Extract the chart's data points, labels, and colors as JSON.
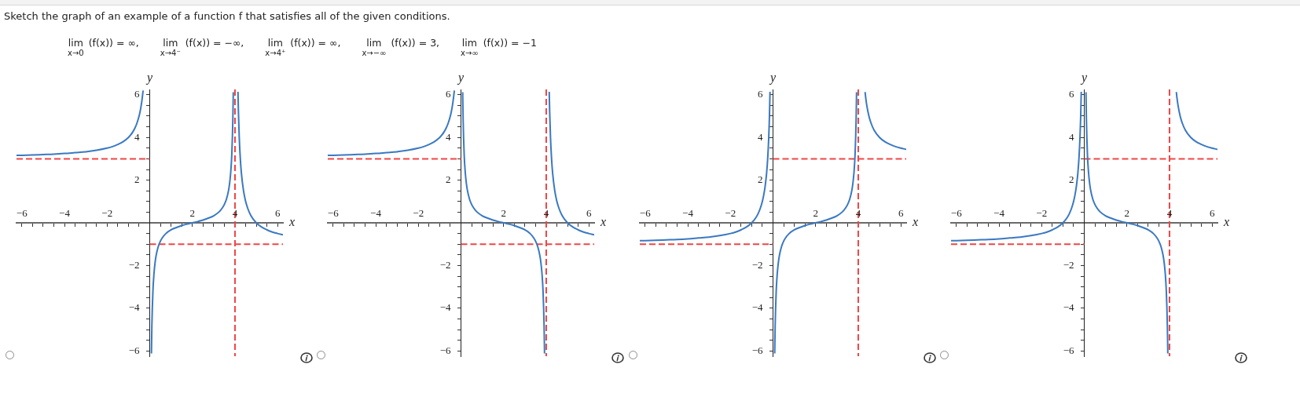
{
  "chart_data": [
    {
      "type": "other",
      "title": "Sketch the graph of an example of a function f that satisfies all of the given conditions.",
      "annotations": [
        "lim$_{x→0}$ (f(x)) = ∞,",
        "lim$_{x→4⁻}$ (f(x)) = −∞,",
        "lim$_{x→4⁺}$ (f(x)) = ∞,",
        "lim$_{x→−∞}$ (f(x)) = 3,",
        "lim$_{x→∞}$ (f(x)) = −1"
      ]
    },
    {
      "type": "line",
      "xlabel": "x",
      "ylabel": "y",
      "xlim": [
        -6.25,
        6.25
      ],
      "ylim": [
        -6.25,
        6.25
      ],
      "xticks": [
        {
          "value": -6,
          "label": "−6"
        },
        {
          "value": -5.5,
          "label": null
        },
        {
          "value": -5,
          "label": null
        },
        {
          "value": -4.5,
          "label": null
        },
        {
          "value": -4,
          "label": "−4"
        },
        {
          "value": -3.5,
          "label": null
        },
        {
          "value": -3,
          "label": null
        },
        {
          "value": -2.5,
          "label": null
        },
        {
          "value": -2,
          "label": "−2"
        },
        {
          "value": -1.5,
          "label": null
        },
        {
          "value": -1,
          "label": null
        },
        {
          "value": -0.5,
          "label": null
        },
        {
          "value": 0.5,
          "label": null
        },
        {
          "value": 1,
          "label": null
        },
        {
          "value": 1.5,
          "label": null
        },
        2,
        {
          "value": 2.5,
          "label": null
        },
        {
          "value": 3,
          "label": null
        },
        {
          "value": 3.5,
          "label": null
        },
        4,
        {
          "value": 4.5,
          "label": null
        },
        {
          "value": 5,
          "label": null
        },
        {
          "value": 5.5,
          "label": null
        },
        6
      ],
      "yticks": [
        {
          "value": -6,
          "label": "−6"
        },
        {
          "value": -5.5,
          "label": null
        },
        {
          "value": -5,
          "label": null
        },
        {
          "value": -4.5,
          "label": null
        },
        {
          "value": -4,
          "label": "−4"
        },
        {
          "value": -3.5,
          "label": null
        },
        {
          "value": -3,
          "label": null
        },
        {
          "value": -2.5,
          "label": null
        },
        {
          "value": -2,
          "label": "−2"
        },
        {
          "value": -1.5,
          "label": null
        },
        {
          "value": -1,
          "label": null
        },
        {
          "value": -0.5,
          "label": null
        },
        {
          "value": 0.5,
          "label": null
        },
        {
          "value": 1,
          "label": null
        },
        {
          "value": 1.5,
          "label": null
        },
        2,
        {
          "value": 2.5,
          "label": null
        },
        {
          "value": 3,
          "label": null
        },
        {
          "value": 3.5,
          "label": null
        },
        4,
        {
          "value": 4.5,
          "label": null
        },
        {
          "value": 5,
          "label": null
        },
        {
          "value": 5.5,
          "label": null
        },
        6
      ],
      "marker": "none",
      "series": [
        {
          "color": "#3a79c1",
          "x": [
            -6.25,
            -5.5,
            -5,
            -4.5,
            -4,
            -3.5,
            -3,
            -2.5,
            -2,
            -1.75,
            -1.5,
            -1.25,
            -1,
            -0.9,
            -0.8,
            -0.7,
            -0.6,
            -0.5,
            -0.45,
            -0.4,
            -0.35,
            -0.31
          ],
          "values": [
            3.16,
            3.18,
            3.2,
            3.22,
            3.25,
            3.29,
            3.33,
            3.4,
            3.5,
            3.57,
            3.67,
            3.8,
            4,
            4.11,
            4.25,
            4.43,
            4.67,
            5,
            5.22,
            5.5,
            5.86,
            6.2
          ]
        },
        {
          "color": "#3a79c1",
          "x": [
            0.08,
            0.1,
            0.15,
            0.2,
            0.25,
            0.3,
            0.4,
            0.5,
            0.6,
            0.75,
            1,
            1.25,
            1.5,
            1.75,
            2,
            2.25,
            2.5,
            2.75,
            3,
            3.25,
            3.4,
            3.5,
            3.6,
            3.7,
            3.75,
            3.8,
            3.85,
            3.9,
            3.92
          ],
          "values": [
            -6.12,
            -4.87,
            -3.2,
            -2.37,
            -1.87,
            -1.53,
            -1.11,
            -0.86,
            -0.69,
            -0.51,
            -0.33,
            -0.22,
            -0.13,
            -0.06,
            0,
            0.06,
            0.13,
            0.22,
            0.33,
            0.51,
            0.69,
            0.86,
            1.11,
            1.53,
            1.87,
            2.37,
            3.2,
            4.87,
            6.12
          ]
        },
        {
          "color": "#3a79c1",
          "x": [
            4.14,
            4.16,
            4.2,
            4.25,
            4.3,
            4.4,
            4.5,
            4.6,
            4.75,
            5,
            5.25,
            5.5,
            5.75,
            6,
            6.25
          ],
          "values": [
            6.14,
            5.25,
            4,
            3,
            2.33,
            1.5,
            1,
            0.67,
            0.33,
            0,
            -0.2,
            -0.33,
            -0.43,
            -0.5,
            -0.56
          ]
        },
        {
          "color": "#ef4646",
          "line_style": "dashed",
          "x": [
            -6.25,
            0
          ],
          "values": [
            3,
            3
          ]
        },
        {
          "color": "#ef4646",
          "line_style": "dashed",
          "x": [
            0,
            6.25
          ],
          "values": [
            -1,
            -1
          ]
        }
      ],
      "ref_lines": [
        {
          "axis": "x",
          "value": 4,
          "color": "#ef4646",
          "line_style": "dashed"
        }
      ]
    },
    {
      "type": "line",
      "xlabel": "x",
      "ylabel": "y",
      "xlim": [
        -6.25,
        6.25
      ],
      "ylim": [
        -6.25,
        6.25
      ],
      "xticks": [
        {
          "value": -6,
          "label": "−6"
        },
        {
          "value": -5.5,
          "label": null
        },
        {
          "value": -5,
          "label": null
        },
        {
          "value": -4.5,
          "label": null
        },
        {
          "value": -4,
          "label": "−4"
        },
        {
          "value": -3.5,
          "label": null
        },
        {
          "value": -3,
          "label": null
        },
        {
          "value": -2.5,
          "label": null
        },
        {
          "value": -2,
          "label": "−2"
        },
        {
          "value": -1.5,
          "label": null
        },
        {
          "value": -1,
          "label": null
        },
        {
          "value": -0.5,
          "label": null
        },
        {
          "value": 0.5,
          "label": null
        },
        {
          "value": 1,
          "label": null
        },
        {
          "value": 1.5,
          "label": null
        },
        2,
        {
          "value": 2.5,
          "label": null
        },
        {
          "value": 3,
          "label": null
        },
        {
          "value": 3.5,
          "label": null
        },
        4,
        {
          "value": 4.5,
          "label": null
        },
        {
          "value": 5,
          "label": null
        },
        {
          "value": 5.5,
          "label": null
        },
        6
      ],
      "yticks": [
        {
          "value": -6,
          "label": "−6"
        },
        {
          "value": -5.5,
          "label": null
        },
        {
          "value": -5,
          "label": null
        },
        {
          "value": -4.5,
          "label": null
        },
        {
          "value": -4,
          "label": "−4"
        },
        {
          "value": -3.5,
          "label": null
        },
        {
          "value": -3,
          "label": null
        },
        {
          "value": -2.5,
          "label": null
        },
        {
          "value": -2,
          "label": "−2"
        },
        {
          "value": -1.5,
          "label": null
        },
        {
          "value": -1,
          "label": null
        },
        {
          "value": -0.5,
          "label": null
        },
        {
          "value": 0.5,
          "label": null
        },
        {
          "value": 1,
          "label": null
        },
        {
          "value": 1.5,
          "label": null
        },
        2,
        {
          "value": 2.5,
          "label": null
        },
        {
          "value": 3,
          "label": null
        },
        {
          "value": 3.5,
          "label": null
        },
        4,
        {
          "value": 4.5,
          "label": null
        },
        {
          "value": 5,
          "label": null
        },
        {
          "value": 5.5,
          "label": null
        },
        6
      ],
      "marker": "none",
      "series": [
        {
          "color": "#3a79c1",
          "x": [
            -6.25,
            -5.5,
            -5,
            -4.5,
            -4,
            -3.5,
            -3,
            -2.5,
            -2,
            -1.75,
            -1.5,
            -1.25,
            -1,
            -0.9,
            -0.8,
            -0.7,
            -0.6,
            -0.5,
            -0.45,
            -0.4,
            -0.35,
            -0.31
          ],
          "values": [
            3.16,
            3.18,
            3.2,
            3.22,
            3.25,
            3.29,
            3.33,
            3.4,
            3.5,
            3.57,
            3.67,
            3.8,
            4,
            4.11,
            4.25,
            4.43,
            4.67,
            5,
            5.22,
            5.5,
            5.86,
            6.2
          ]
        },
        {
          "color": "#3a79c1",
          "x": [
            0.08,
            0.1,
            0.15,
            0.2,
            0.25,
            0.3,
            0.4,
            0.5,
            0.6,
            0.75,
            1,
            1.25,
            1.5,
            1.75,
            2,
            2.25,
            2.5,
            2.75,
            3,
            3.25,
            3.4,
            3.5,
            3.6,
            3.7,
            3.75,
            3.8,
            3.85,
            3.9,
            3.92
          ],
          "values": [
            6.12,
            4.87,
            3.2,
            2.37,
            1.87,
            1.53,
            1.11,
            0.86,
            0.69,
            0.51,
            0.33,
            0.22,
            0.13,
            0.06,
            0,
            -0.06,
            -0.13,
            -0.22,
            -0.33,
            -0.51,
            -0.69,
            -0.86,
            -1.11,
            -1.53,
            -1.87,
            -2.37,
            -3.2,
            -4.87,
            -6.12
          ]
        },
        {
          "color": "#3a79c1",
          "x": [
            4.14,
            4.16,
            4.2,
            4.25,
            4.3,
            4.4,
            4.5,
            4.6,
            4.75,
            5,
            5.25,
            5.5,
            5.75,
            6,
            6.25
          ],
          "values": [
            6.14,
            5.25,
            4,
            3,
            2.33,
            1.5,
            1,
            0.67,
            0.33,
            0,
            -0.2,
            -0.33,
            -0.43,
            -0.5,
            -0.56
          ]
        },
        {
          "color": "#ef4646",
          "line_style": "dashed",
          "x": [
            -6.25,
            0
          ],
          "values": [
            3,
            3
          ]
        },
        {
          "color": "#ef4646",
          "line_style": "dashed",
          "x": [
            0,
            6.25
          ],
          "values": [
            -1,
            -1
          ]
        }
      ],
      "ref_lines": [
        {
          "axis": "x",
          "value": 4,
          "color": "#ef4646",
          "line_style": "dashed"
        }
      ]
    },
    {
      "type": "line",
      "xlabel": "x",
      "ylabel": "y",
      "xlim": [
        -6.25,
        6.25
      ],
      "ylim": [
        -6.25,
        6.25
      ],
      "xticks": [
        {
          "value": -6,
          "label": "−6"
        },
        {
          "value": -5.5,
          "label": null
        },
        {
          "value": -5,
          "label": null
        },
        {
          "value": -4.5,
          "label": null
        },
        {
          "value": -4,
          "label": "−4"
        },
        {
          "value": -3.5,
          "label": null
        },
        {
          "value": -3,
          "label": null
        },
        {
          "value": -2.5,
          "label": null
        },
        {
          "value": -2,
          "label": "−2"
        },
        {
          "value": -1.5,
          "label": null
        },
        {
          "value": -1,
          "label": null
        },
        {
          "value": -0.5,
          "label": null
        },
        {
          "value": 0.5,
          "label": null
        },
        {
          "value": 1,
          "label": null
        },
        {
          "value": 1.5,
          "label": null
        },
        2,
        {
          "value": 2.5,
          "label": null
        },
        {
          "value": 3,
          "label": null
        },
        {
          "value": 3.5,
          "label": null
        },
        4,
        {
          "value": 4.5,
          "label": null
        },
        {
          "value": 5,
          "label": null
        },
        {
          "value": 5.5,
          "label": null
        },
        6
      ],
      "yticks": [
        {
          "value": -6,
          "label": "−6"
        },
        {
          "value": -5.5,
          "label": null
        },
        {
          "value": -5,
          "label": null
        },
        {
          "value": -4.5,
          "label": null
        },
        {
          "value": -4,
          "label": "−4"
        },
        {
          "value": -3.5,
          "label": null
        },
        {
          "value": -3,
          "label": null
        },
        {
          "value": -2.5,
          "label": null
        },
        {
          "value": -2,
          "label": "−2"
        },
        {
          "value": -1.5,
          "label": null
        },
        {
          "value": -1,
          "label": null
        },
        {
          "value": -0.5,
          "label": null
        },
        {
          "value": 0.5,
          "label": null
        },
        {
          "value": 1,
          "label": null
        },
        {
          "value": 1.5,
          "label": null
        },
        2,
        {
          "value": 2.5,
          "label": null
        },
        {
          "value": 3,
          "label": null
        },
        {
          "value": 3.5,
          "label": null
        },
        4,
        {
          "value": 4.5,
          "label": null
        },
        {
          "value": 5,
          "label": null
        },
        {
          "value": 5.5,
          "label": null
        },
        6
      ],
      "marker": "none",
      "series": [
        {
          "color": "#3a79c1",
          "x": [
            -6.25,
            -5.5,
            -5,
            -4.5,
            -4,
            -3.5,
            -3,
            -2.5,
            -2,
            -1.75,
            -1.5,
            -1.25,
            -1,
            -0.8,
            -0.7,
            -0.6,
            -0.5,
            -0.4,
            -0.35,
            -0.3,
            -0.25,
            -0.2,
            -0.17,
            -0.14
          ],
          "values": [
            -0.84,
            -0.82,
            -0.8,
            -0.78,
            -0.75,
            -0.71,
            -0.67,
            -0.6,
            -0.5,
            -0.43,
            -0.33,
            -0.2,
            0,
            0.25,
            0.43,
            0.67,
            1,
            1.5,
            1.86,
            2.33,
            3,
            4,
            4.88,
            6.14
          ]
        },
        {
          "color": "#3a79c1",
          "x": [
            0.08,
            0.1,
            0.15,
            0.2,
            0.25,
            0.3,
            0.4,
            0.5,
            0.6,
            0.75,
            1,
            1.25,
            1.5,
            1.75,
            2,
            2.25,
            2.5,
            2.75,
            3,
            3.25,
            3.4,
            3.5,
            3.6,
            3.7,
            3.75,
            3.8,
            3.85,
            3.9,
            3.92
          ],
          "values": [
            -6.12,
            -4.87,
            -3.2,
            -2.37,
            -1.87,
            -1.53,
            -1.11,
            -0.86,
            -0.69,
            -0.51,
            -0.33,
            -0.22,
            -0.13,
            -0.06,
            0,
            0.06,
            0.13,
            0.22,
            0.33,
            0.51,
            0.69,
            0.86,
            1.11,
            1.53,
            1.87,
            2.37,
            3.2,
            4.87,
            6.12
          ]
        },
        {
          "color": "#3a79c1",
          "x": [
            4.32,
            4.35,
            4.4,
            4.5,
            4.6,
            4.75,
            5,
            5.25,
            5.5,
            5.75,
            6,
            6.25
          ],
          "values": [
            6.13,
            5.86,
            5.5,
            5,
            4.67,
            4.33,
            4,
            3.8,
            3.67,
            3.57,
            3.5,
            3.44
          ]
        },
        {
          "color": "#ef4646",
          "line_style": "dashed",
          "x": [
            -6.25,
            0
          ],
          "values": [
            -1,
            -1
          ]
        },
        {
          "color": "#ef4646",
          "line_style": "dashed",
          "x": [
            0,
            6.25
          ],
          "values": [
            3,
            3
          ]
        }
      ],
      "ref_lines": [
        {
          "axis": "x",
          "value": 4,
          "color": "#ef4646",
          "line_style": "dashed"
        }
      ]
    },
    {
      "type": "line",
      "xlabel": "x",
      "ylabel": "y",
      "xlim": [
        -6.25,
        6.25
      ],
      "ylim": [
        -6.25,
        6.25
      ],
      "xticks": [
        {
          "value": -6,
          "label": "−6"
        },
        {
          "value": -5.5,
          "label": null
        },
        {
          "value": -5,
          "label": null
        },
        {
          "value": -4.5,
          "label": null
        },
        {
          "value": -4,
          "label": "−4"
        },
        {
          "value": -3.5,
          "label": null
        },
        {
          "value": -3,
          "label": null
        },
        {
          "value": -2.5,
          "label": null
        },
        {
          "value": -2,
          "label": "−2"
        },
        {
          "value": -1.5,
          "label": null
        },
        {
          "value": -1,
          "label": null
        },
        {
          "value": -0.5,
          "label": null
        },
        {
          "value": 0.5,
          "label": null
        },
        {
          "value": 1,
          "label": null
        },
        {
          "value": 1.5,
          "label": null
        },
        2,
        {
          "value": 2.5,
          "label": null
        },
        {
          "value": 3,
          "label": null
        },
        {
          "value": 3.5,
          "label": null
        },
        4,
        {
          "value": 4.5,
          "label": null
        },
        {
          "value": 5,
          "label": null
        },
        {
          "value": 5.5,
          "label": null
        },
        6
      ],
      "yticks": [
        {
          "value": -6,
          "label": "−6"
        },
        {
          "value": -5.5,
          "label": null
        },
        {
          "value": -5,
          "label": null
        },
        {
          "value": -4.5,
          "label": null
        },
        {
          "value": -4,
          "label": "−4"
        },
        {
          "value": -3.5,
          "label": null
        },
        {
          "value": -3,
          "label": null
        },
        {
          "value": -2.5,
          "label": null
        },
        {
          "value": -2,
          "label": "−2"
        },
        {
          "value": -1.5,
          "label": null
        },
        {
          "value": -1,
          "label": null
        },
        {
          "value": -0.5,
          "label": null
        },
        {
          "value": 0.5,
          "label": null
        },
        {
          "value": 1,
          "label": null
        },
        {
          "value": 1.5,
          "label": null
        },
        2,
        {
          "value": 2.5,
          "label": null
        },
        {
          "value": 3,
          "label": null
        },
        {
          "value": 3.5,
          "label": null
        },
        4,
        {
          "value": 4.5,
          "label": null
        },
        {
          "value": 5,
          "label": null
        },
        {
          "value": 5.5,
          "label": null
        },
        6
      ],
      "marker": "none",
      "series": [
        {
          "color": "#3a79c1",
          "x": [
            -6.25,
            -5.5,
            -5,
            -4.5,
            -4,
            -3.5,
            -3,
            -2.5,
            -2,
            -1.75,
            -1.5,
            -1.25,
            -1,
            -0.8,
            -0.7,
            -0.6,
            -0.5,
            -0.4,
            -0.35,
            -0.3,
            -0.25,
            -0.2,
            -0.17,
            -0.14
          ],
          "values": [
            -0.84,
            -0.82,
            -0.8,
            -0.78,
            -0.75,
            -0.71,
            -0.67,
            -0.6,
            -0.5,
            -0.43,
            -0.33,
            -0.2,
            0,
            0.25,
            0.43,
            0.67,
            1,
            1.5,
            1.86,
            2.33,
            3,
            4,
            4.88,
            6.14
          ]
        },
        {
          "color": "#3a79c1",
          "x": [
            0.08,
            0.1,
            0.15,
            0.2,
            0.25,
            0.3,
            0.4,
            0.5,
            0.6,
            0.75,
            1,
            1.25,
            1.5,
            1.75,
            2,
            2.25,
            2.5,
            2.75,
            3,
            3.25,
            3.4,
            3.5,
            3.6,
            3.7,
            3.75,
            3.8,
            3.85,
            3.9,
            3.92
          ],
          "values": [
            6.12,
            4.87,
            3.2,
            2.37,
            1.87,
            1.53,
            1.11,
            0.86,
            0.69,
            0.51,
            0.33,
            0.22,
            0.13,
            0.06,
            0,
            -0.06,
            -0.13,
            -0.22,
            -0.33,
            -0.51,
            -0.69,
            -0.86,
            -1.11,
            -1.53,
            -1.87,
            -2.37,
            -3.2,
            -4.87,
            -6.12
          ]
        },
        {
          "color": "#3a79c1",
          "x": [
            4.32,
            4.35,
            4.4,
            4.5,
            4.6,
            4.75,
            5,
            5.25,
            5.5,
            5.75,
            6,
            6.25
          ],
          "values": [
            6.13,
            5.86,
            5.5,
            5,
            4.67,
            4.33,
            4,
            3.8,
            3.67,
            3.57,
            3.5,
            3.44
          ]
        },
        {
          "color": "#ef4646",
          "line_style": "dashed",
          "x": [
            -6.25,
            0
          ],
          "values": [
            -1,
            -1
          ]
        },
        {
          "color": "#ef4646",
          "line_style": "dashed",
          "x": [
            0,
            6.25
          ],
          "values": [
            3,
            3
          ]
        }
      ],
      "ref_lines": [
        {
          "axis": "x",
          "value": 4,
          "color": "#ef4646",
          "line_style": "dashed"
        }
      ]
    }
  ]
}
